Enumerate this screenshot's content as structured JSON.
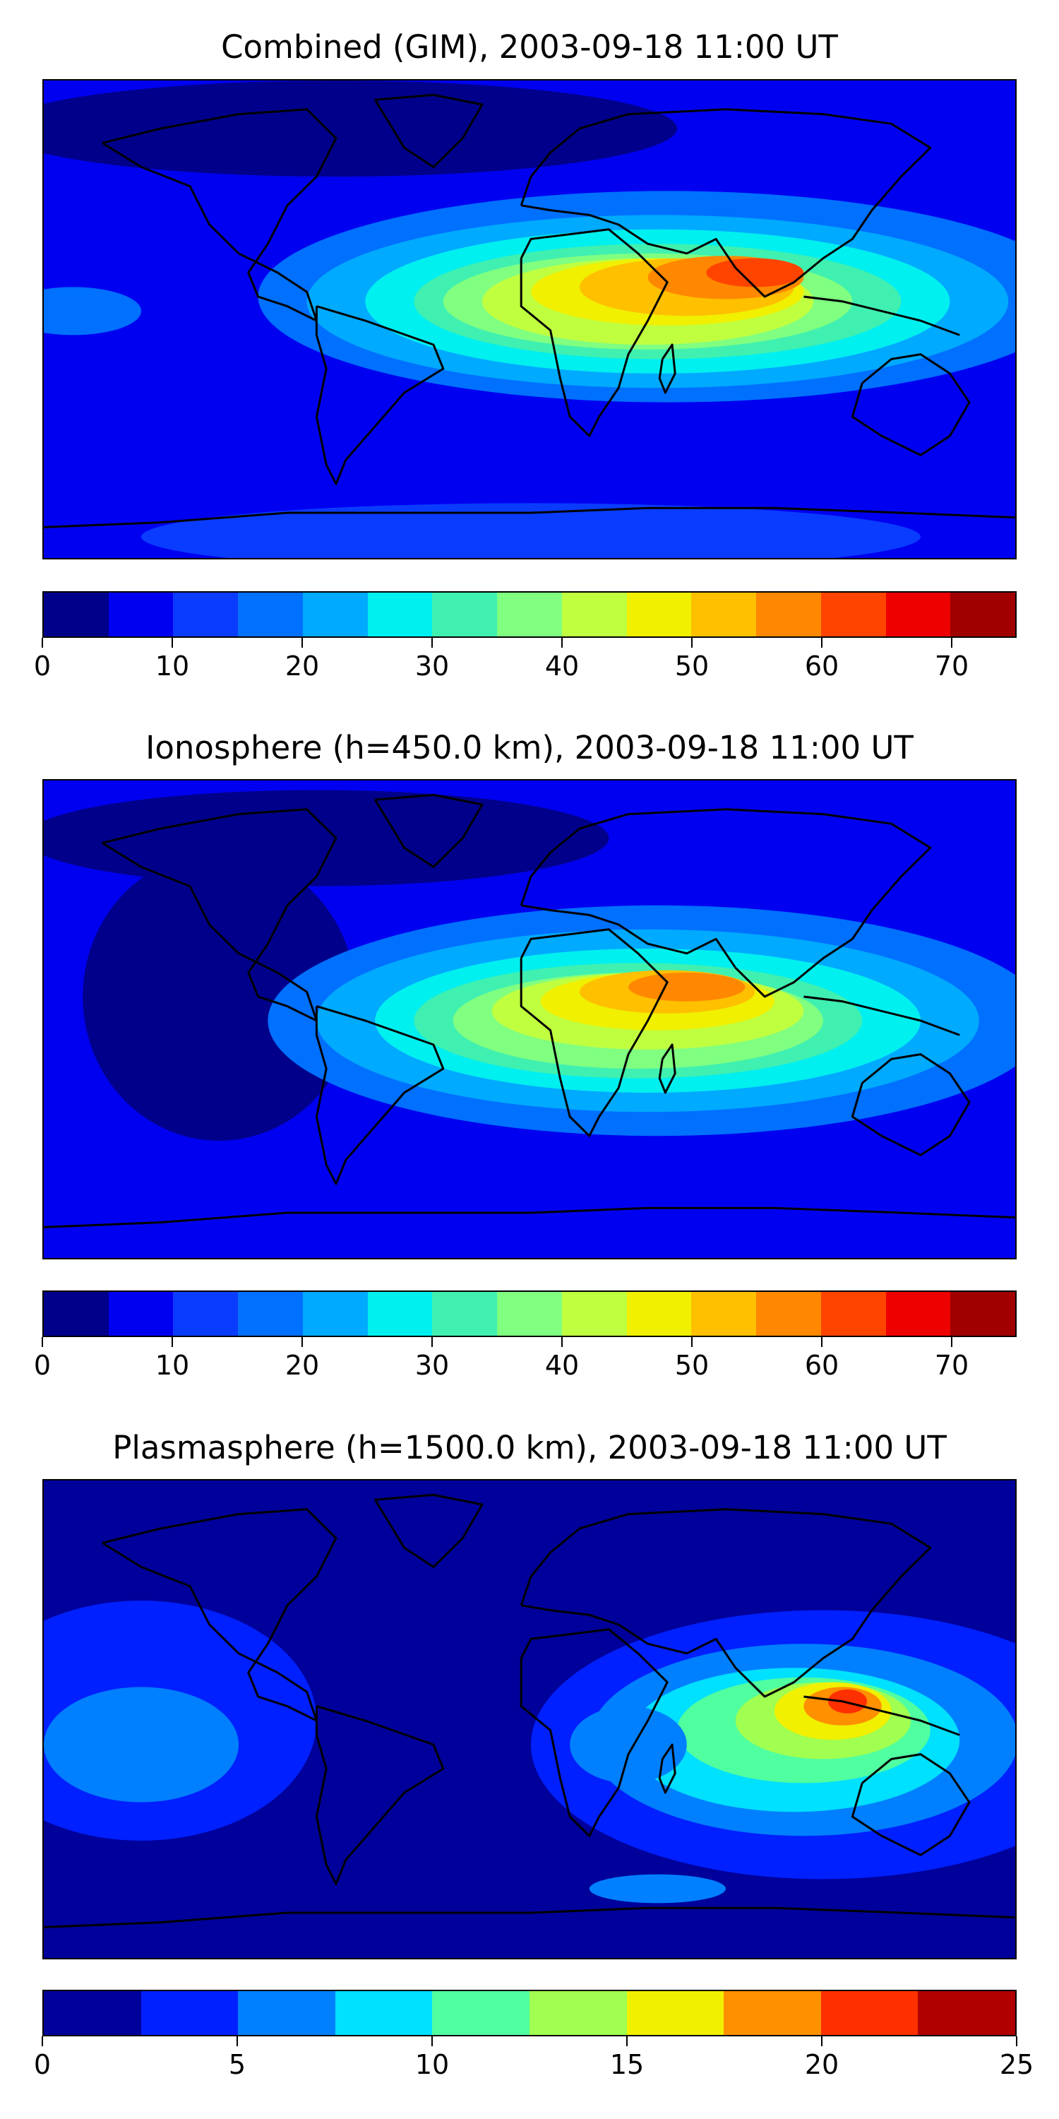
{
  "panels": [
    {
      "title": "Combined (GIM), 2003-09-18 11:00 UT",
      "colorbar": {
        "min": 0,
        "max": 75,
        "step": 5,
        "ticks": [
          "0",
          "10",
          "20",
          "30",
          "40",
          "50",
          "60",
          "70"
        ],
        "tick_values": [
          0,
          10,
          20,
          30,
          40,
          50,
          60,
          70
        ],
        "colors": [
          "#00008b",
          "#0000f0",
          "#0a3cff",
          "#0070ff",
          "#00aaff",
          "#00f0f0",
          "#40f0b0",
          "#80ff80",
          "#c0ff40",
          "#f0f000",
          "#ffc000",
          "#ff8800",
          "#ff4400",
          "#ee0000",
          "#a00000"
        ]
      }
    },
    {
      "title": "Ionosphere  (h=450.0 km), 2003-09-18 11:00 UT",
      "colorbar": {
        "min": 0,
        "max": 75,
        "step": 5,
        "ticks": [
          "0",
          "10",
          "20",
          "30",
          "40",
          "50",
          "60",
          "70"
        ],
        "tick_values": [
          0,
          10,
          20,
          30,
          40,
          50,
          60,
          70
        ],
        "colors": [
          "#00008b",
          "#0000f0",
          "#0a3cff",
          "#0070ff",
          "#00aaff",
          "#00f0f0",
          "#40f0b0",
          "#80ff80",
          "#c0ff40",
          "#f0f000",
          "#ffc000",
          "#ff8800",
          "#ff4400",
          "#ee0000",
          "#a00000"
        ]
      }
    },
    {
      "title": "Plasmasphere (h=1500.0 km), 2003-09-18 11:00 UT",
      "colorbar": {
        "min": 0,
        "max": 25,
        "step": 2.5,
        "ticks": [
          "0",
          "5",
          "10",
          "15",
          "20",
          "25"
        ],
        "tick_values": [
          0,
          5,
          10,
          15,
          20,
          25
        ],
        "colors": [
          "#00009a",
          "#0020ff",
          "#0080ff",
          "#00e0ff",
          "#50ffa0",
          "#a0ff50",
          "#f0f000",
          "#ff9000",
          "#ff3000",
          "#b00000"
        ]
      }
    }
  ]
}
